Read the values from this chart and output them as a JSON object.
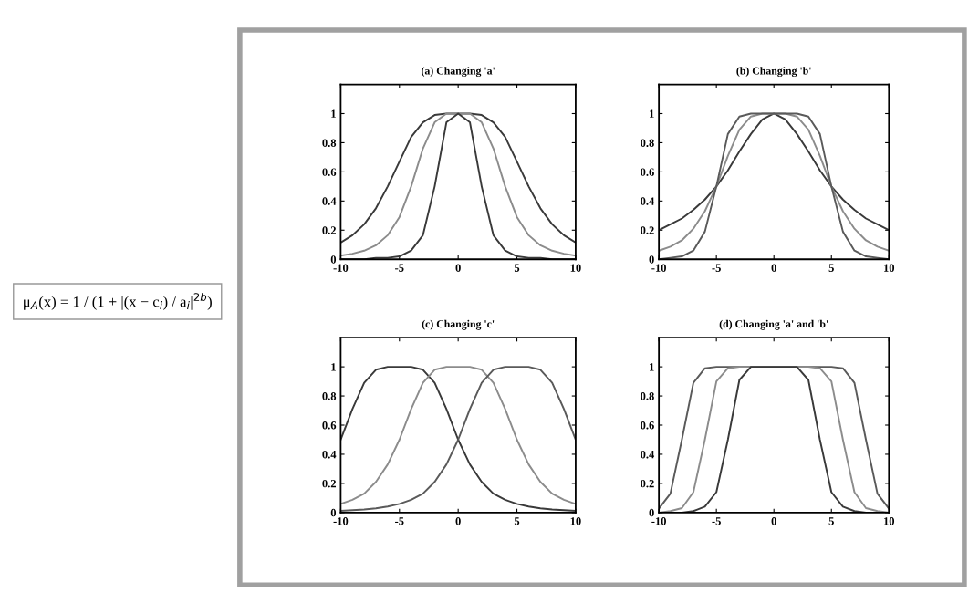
{
  "chart_data": [
    {
      "type": "line",
      "title": "(a) Changing 'a'",
      "annotations": [
        "μ$_{A}$(x) = 1 / (1 + |(x − c$_{i}$) / a$_{i}$|$^{2b}$)"
      ],
      "x": [
        -10,
        -9,
        -8,
        -7,
        -6,
        -5,
        -4,
        -3,
        -2,
        -1,
        0,
        1,
        2,
        3,
        4,
        5,
        6,
        7,
        8,
        9,
        10
      ],
      "series": [
        {
          "color": "#3a3a3a",
          "values": [
            0.115,
            0.165,
            0.24,
            0.35,
            0.5,
            0.67,
            0.84,
            0.94,
            0.99,
            1,
            1,
            1,
            0.99,
            0.94,
            0.84,
            0.67,
            0.5,
            0.35,
            0.24,
            0.165,
            0.115
          ]
        },
        {
          "color": "#8c8c8c",
          "values": [
            0.025,
            0.038,
            0.059,
            0.096,
            0.165,
            0.29,
            0.5,
            0.76,
            0.94,
            1,
            1,
            1,
            0.94,
            0.76,
            0.5,
            0.29,
            0.165,
            0.096,
            0.059,
            0.038,
            0.025
          ]
        },
        {
          "color": "#3a3a3a",
          "values": [
            0,
            0,
            0,
            0.01,
            0.01,
            0.02,
            0.06,
            0.165,
            0.5,
            0.94,
            1,
            0.94,
            0.5,
            0.165,
            0.06,
            0.02,
            0.01,
            0.01,
            0,
            0,
            0
          ]
        }
      ],
      "xlim": [
        -10,
        10
      ],
      "ylim": [
        0,
        1.2
      ],
      "xticks": [
        -10,
        -5,
        0,
        5,
        10
      ],
      "yticks": [
        0,
        0.2,
        0.4,
        0.6,
        0.8,
        1
      ],
      "grid": false
    },
    {
      "type": "line",
      "title": "(b) Changing 'b'",
      "x": [
        -10,
        -9,
        -8,
        -7,
        -6,
        -5,
        -4,
        -3,
        -2,
        -1,
        0,
        1,
        2,
        3,
        4,
        5,
        6,
        7,
        8,
        9,
        10
      ],
      "series": [
        {
          "color": "#3a3a3a",
          "values": [
            0.2,
            0.24,
            0.28,
            0.34,
            0.41,
            0.5,
            0.61,
            0.74,
            0.86,
            0.96,
            1,
            0.96,
            0.86,
            0.74,
            0.61,
            0.5,
            0.41,
            0.34,
            0.28,
            0.24,
            0.2
          ]
        },
        {
          "color": "#8c8c8c",
          "values": [
            0.059,
            0.087,
            0.13,
            0.21,
            0.33,
            0.5,
            0.71,
            0.89,
            0.98,
            1,
            1,
            1,
            0.98,
            0.89,
            0.71,
            0.5,
            0.33,
            0.21,
            0.13,
            0.087,
            0.059
          ]
        },
        {
          "color": "#5a5a5a",
          "values": [
            0,
            0.01,
            0.02,
            0.06,
            0.19,
            0.5,
            0.86,
            0.98,
            1,
            1,
            1,
            1,
            1,
            0.98,
            0.86,
            0.5,
            0.19,
            0.06,
            0.02,
            0.01,
            0
          ]
        }
      ],
      "xlim": [
        -10,
        10
      ],
      "ylim": [
        0,
        1.2
      ],
      "xticks": [
        -10,
        -5,
        0,
        5,
        10
      ],
      "yticks": [
        0,
        0.2,
        0.4,
        0.6,
        0.8,
        1
      ],
      "grid": false
    },
    {
      "type": "line",
      "title": "(c) Changing 'c'",
      "x": [
        -10,
        -9,
        -8,
        -7,
        -6,
        -5,
        -4,
        -3,
        -2,
        -1,
        0,
        1,
        2,
        3,
        4,
        5,
        6,
        7,
        8,
        9,
        10
      ],
      "series": [
        {
          "color": "#3a3a3a",
          "values": [
            0.5,
            0.71,
            0.89,
            0.98,
            1,
            1,
            1,
            0.98,
            0.89,
            0.71,
            0.5,
            0.33,
            0.21,
            0.13,
            0.087,
            0.059,
            0.041,
            0.029,
            0.021,
            0.016,
            0.012
          ]
        },
        {
          "color": "#8c8c8c",
          "values": [
            0.059,
            0.087,
            0.13,
            0.21,
            0.33,
            0.5,
            0.71,
            0.89,
            0.98,
            1,
            1,
            1,
            0.98,
            0.89,
            0.71,
            0.5,
            0.33,
            0.21,
            0.13,
            0.087,
            0.059
          ]
        },
        {
          "color": "#5a5a5a",
          "values": [
            0.012,
            0.016,
            0.021,
            0.029,
            0.041,
            0.059,
            0.087,
            0.13,
            0.21,
            0.33,
            0.5,
            0.71,
            0.89,
            0.98,
            1,
            1,
            1,
            0.98,
            0.89,
            0.71,
            0.5
          ]
        }
      ],
      "xlim": [
        -10,
        10
      ],
      "ylim": [
        0,
        1.2
      ],
      "xticks": [
        -10,
        -5,
        0,
        5,
        10
      ],
      "yticks": [
        0,
        0.2,
        0.4,
        0.6,
        0.8,
        1
      ],
      "grid": false
    },
    {
      "type": "line",
      "title": "(d) Changing 'a' and 'b'",
      "x": [
        -10,
        -9,
        -8,
        -7,
        -6,
        -5,
        -4,
        -3,
        -2,
        -1,
        0,
        1,
        2,
        3,
        4,
        5,
        6,
        7,
        8,
        9,
        10
      ],
      "series": [
        {
          "color": "#5a5a5a",
          "values": [
            0.027,
            0.13,
            0.5,
            0.89,
            0.99,
            1,
            1,
            1,
            1,
            1,
            1,
            1,
            1,
            1,
            1,
            1,
            0.99,
            0.89,
            0.5,
            0.13,
            0.027
          ]
        },
        {
          "color": "#8c8c8c",
          "values": [
            0,
            0.01,
            0.03,
            0.14,
            0.5,
            0.9,
            0.99,
            1,
            1,
            1,
            1,
            1,
            1,
            1,
            0.99,
            0.9,
            0.5,
            0.14,
            0.03,
            0.01,
            0
          ]
        },
        {
          "color": "#3a3a3a",
          "values": [
            0,
            0,
            0,
            0.01,
            0.04,
            0.14,
            0.5,
            0.91,
            1,
            1,
            1,
            1,
            1,
            0.91,
            0.5,
            0.14,
            0.04,
            0.01,
            0,
            0,
            0
          ]
        }
      ],
      "xlim": [
        -10,
        10
      ],
      "ylim": [
        0,
        1.2
      ],
      "xticks": [
        -10,
        -5,
        0,
        5,
        10
      ],
      "yticks": [
        0,
        0.2,
        0.4,
        0.6,
        0.8,
        1
      ],
      "grid": false
    }
  ]
}
